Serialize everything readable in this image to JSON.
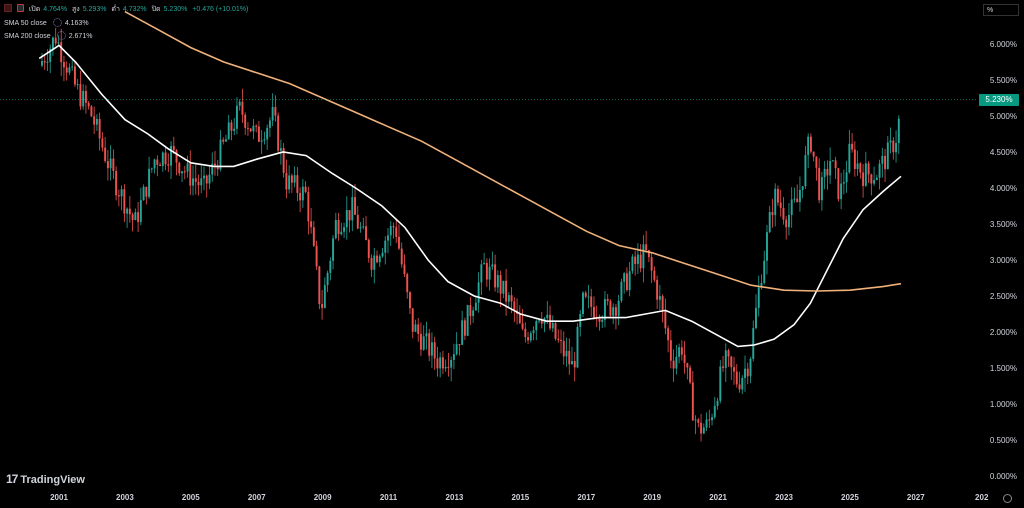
{
  "legend": {
    "ohlc": {
      "open_label": "เปิด",
      "open": "4.764%",
      "high_label": "สูง",
      "high": "5.293%",
      "low_label": "ต่ำ",
      "low": "4.732%",
      "close_label": "ปิด",
      "close": "5.230%",
      "change": "+0.476 (+10.01%)"
    },
    "sma50": {
      "label": "SMA 50 close",
      "value": "4.163%"
    },
    "sma200": {
      "label": "SMA 200 close",
      "value": "2.671%"
    }
  },
  "unit_label": "%",
  "last_price_label": "5.230%",
  "brand": "TradingView",
  "colors": {
    "up": "#26a69a",
    "down": "#ef5350",
    "sma50": "#ffffff",
    "sma200": "#f0b27a",
    "last_price": "#089981"
  },
  "chart_data": {
    "type": "candlestick",
    "timeframe": "monthly",
    "x_tick_labels": [
      "2001",
      "2003",
      "2005",
      "2007",
      "2009",
      "2011",
      "2013",
      "2015",
      "2017",
      "2019",
      "2021",
      "2023",
      "2025",
      "2027",
      "202"
    ],
    "y_tick_labels": [
      "6.000%",
      "5.500%",
      "5.000%",
      "4.500%",
      "4.000%",
      "3.500%",
      "3.000%",
      "2.500%",
      "2.000%",
      "1.500%",
      "1.000%",
      "0.500%",
      "0.000%"
    ],
    "ylim": [
      0,
      6.5
    ],
    "xlim": [
      2000.4,
      2028.0
    ],
    "last_close": 5.23,
    "close_anchors": [
      [
        2000.4,
        5.7
      ],
      [
        2000.9,
        6.1
      ],
      [
        2001.5,
        5.4
      ],
      [
        2002.0,
        5.0
      ],
      [
        2002.6,
        4.2
      ],
      [
        2003.3,
        3.5
      ],
      [
        2003.9,
        4.4
      ],
      [
        2004.4,
        4.5
      ],
      [
        2004.9,
        4.2
      ],
      [
        2005.4,
        4.0
      ],
      [
        2005.9,
        4.5
      ],
      [
        2006.5,
        5.1
      ],
      [
        2007.0,
        4.7
      ],
      [
        2007.5,
        5.0
      ],
      [
        2007.9,
        4.1
      ],
      [
        2008.5,
        3.9
      ],
      [
        2008.95,
        2.3
      ],
      [
        2009.4,
        3.5
      ],
      [
        2009.9,
        3.7
      ],
      [
        2010.5,
        3.0
      ],
      [
        2010.9,
        3.3
      ],
      [
        2011.2,
        3.5
      ],
      [
        2011.7,
        2.1
      ],
      [
        2012.5,
        1.6
      ],
      [
        2012.9,
        1.7
      ],
      [
        2013.4,
        2.2
      ],
      [
        2013.9,
        2.9
      ],
      [
        2014.3,
        2.7
      ],
      [
        2014.8,
        2.3
      ],
      [
        2015.1,
        1.9
      ],
      [
        2015.6,
        2.3
      ],
      [
        2016.2,
        1.8
      ],
      [
        2016.6,
        1.5
      ],
      [
        2016.9,
        2.4
      ],
      [
        2017.5,
        2.3
      ],
      [
        2017.9,
        2.4
      ],
      [
        2018.4,
        2.9
      ],
      [
        2018.8,
        3.1
      ],
      [
        2019.2,
        2.5
      ],
      [
        2019.6,
        1.6
      ],
      [
        2019.9,
        1.8
      ],
      [
        2020.2,
        1.0
      ],
      [
        2020.4,
        0.65
      ],
      [
        2020.7,
        0.7
      ],
      [
        2021.2,
        1.6
      ],
      [
        2021.6,
        1.3
      ],
      [
        2021.95,
        1.6
      ],
      [
        2022.3,
        2.8
      ],
      [
        2022.7,
        3.9
      ],
      [
        2023.1,
        3.6
      ],
      [
        2023.4,
        3.8
      ],
      [
        2023.8,
        4.7
      ],
      [
        2024.1,
        3.9
      ],
      [
        2024.4,
        4.4
      ],
      [
        2024.7,
        3.9
      ],
      [
        2025.0,
        4.5
      ],
      [
        2025.4,
        4.2
      ],
      [
        2025.8,
        4.2
      ],
      [
        2026.2,
        4.5
      ],
      [
        2026.45,
        4.76
      ],
      [
        2026.55,
        5.23
      ]
    ],
    "series": [
      {
        "name": "SMA 50 close",
        "points": [
          [
            2000.4,
            5.8
          ],
          [
            2001.0,
            5.98
          ],
          [
            2001.5,
            5.75
          ],
          [
            2002.3,
            5.3
          ],
          [
            2003.0,
            4.95
          ],
          [
            2003.7,
            4.75
          ],
          [
            2004.3,
            4.55
          ],
          [
            2005.0,
            4.35
          ],
          [
            2005.7,
            4.3
          ],
          [
            2006.3,
            4.3
          ],
          [
            2007.0,
            4.4
          ],
          [
            2007.8,
            4.5
          ],
          [
            2008.5,
            4.45
          ],
          [
            2009.3,
            4.2
          ],
          [
            2010.0,
            4.0
          ],
          [
            2010.8,
            3.75
          ],
          [
            2011.5,
            3.45
          ],
          [
            2012.2,
            3.0
          ],
          [
            2012.8,
            2.7
          ],
          [
            2013.6,
            2.5
          ],
          [
            2014.4,
            2.4
          ],
          [
            2015.0,
            2.25
          ],
          [
            2015.8,
            2.15
          ],
          [
            2016.6,
            2.15
          ],
          [
            2017.4,
            2.2
          ],
          [
            2018.2,
            2.2
          ],
          [
            2018.8,
            2.25
          ],
          [
            2019.4,
            2.3
          ],
          [
            2020.2,
            2.15
          ],
          [
            2021.0,
            1.95
          ],
          [
            2021.6,
            1.8
          ],
          [
            2022.1,
            1.82
          ],
          [
            2022.7,
            1.9
          ],
          [
            2023.3,
            2.1
          ],
          [
            2023.8,
            2.4
          ],
          [
            2024.3,
            2.85
          ],
          [
            2024.8,
            3.3
          ],
          [
            2025.4,
            3.7
          ],
          [
            2026.0,
            3.95
          ],
          [
            2026.55,
            4.163
          ]
        ]
      },
      {
        "name": "SMA 200 close",
        "points": [
          [
            2003.0,
            6.45
          ],
          [
            2004.0,
            6.2
          ],
          [
            2005.0,
            5.95
          ],
          [
            2006.0,
            5.75
          ],
          [
            2007.0,
            5.6
          ],
          [
            2008.0,
            5.45
          ],
          [
            2009.0,
            5.25
          ],
          [
            2010.0,
            5.05
          ],
          [
            2011.0,
            4.85
          ],
          [
            2012.0,
            4.65
          ],
          [
            2013.0,
            4.4
          ],
          [
            2014.0,
            4.15
          ],
          [
            2015.0,
            3.9
          ],
          [
            2016.0,
            3.65
          ],
          [
            2017.0,
            3.4
          ],
          [
            2018.0,
            3.2
          ],
          [
            2019.0,
            3.1
          ],
          [
            2020.0,
            2.95
          ],
          [
            2021.0,
            2.8
          ],
          [
            2022.0,
            2.65
          ],
          [
            2023.0,
            2.58
          ],
          [
            2024.0,
            2.57
          ],
          [
            2025.0,
            2.58
          ],
          [
            2026.0,
            2.63
          ],
          [
            2026.55,
            2.671
          ]
        ]
      }
    ]
  }
}
